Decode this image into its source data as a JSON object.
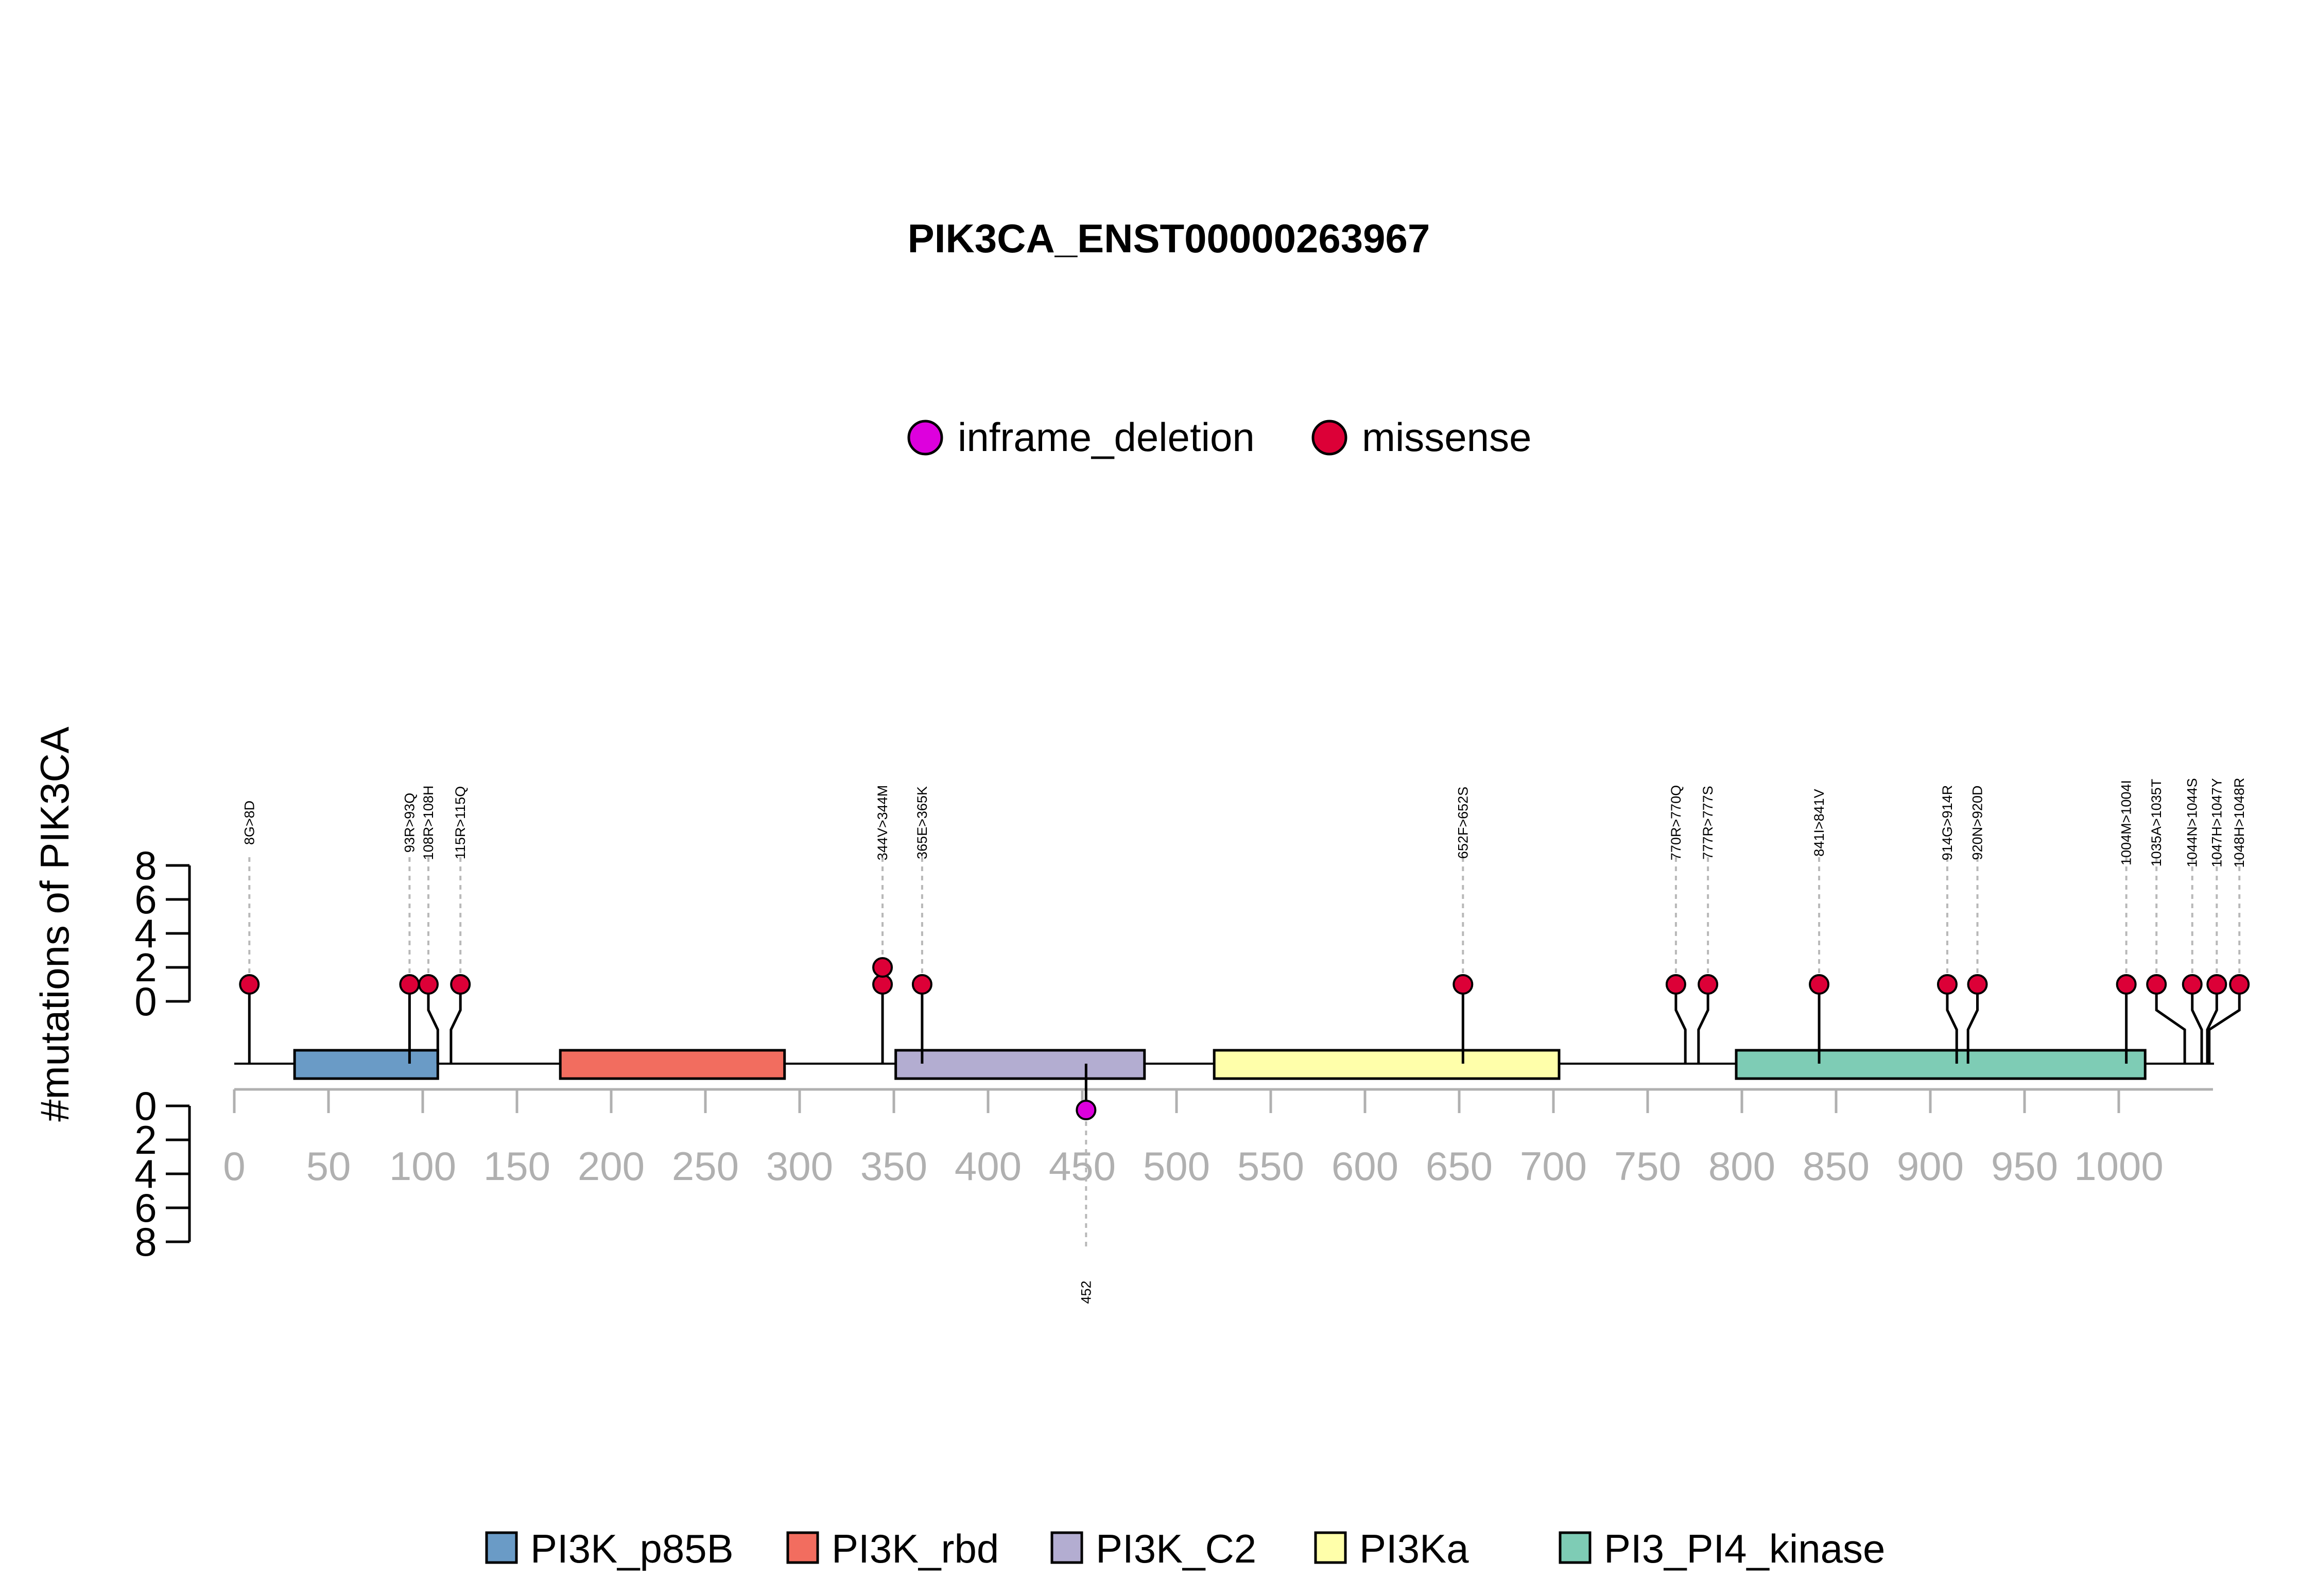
{
  "chart_data": {
    "type": "lollipop",
    "title": "PIK3CA_ENST00000263967",
    "ylabel": "#mutations of PIK3CA",
    "protein_length": 1050,
    "x_ticks": [
      0,
      50,
      100,
      150,
      200,
      250,
      300,
      350,
      400,
      450,
      500,
      550,
      600,
      650,
      700,
      750,
      800,
      850,
      900,
      950,
      1000
    ],
    "y_ticks_top": [
      "8",
      "6",
      "4",
      "2",
      "0"
    ],
    "y_ticks_bottom": [
      "0",
      "2",
      "4",
      "6",
      "8"
    ],
    "y_range": [
      0,
      8
    ],
    "mutation_legend": [
      {
        "name": "inframe_deletion",
        "color": "#DD00DD"
      },
      {
        "name": "missense",
        "color": "#DC0037"
      }
    ],
    "domain_legend": [
      {
        "name": "PI3K_p85B",
        "color": "#6A9BC6"
      },
      {
        "name": "PI3K_rbd",
        "color": "#F26D5F"
      },
      {
        "name": "PI3K_C2",
        "color": "#B3ADD1"
      },
      {
        "name": "PI3Ka",
        "color": "#FFFFAA"
      },
      {
        "name": "PI3_PI4_kinase",
        "color": "#7ECCB5"
      }
    ],
    "domains": [
      {
        "name": "PI3K_p85B",
        "start": 32,
        "end": 108
      },
      {
        "name": "PI3K_rbd",
        "start": 173,
        "end": 292
      },
      {
        "name": "PI3K_C2",
        "start": 351,
        "end": 483
      },
      {
        "name": "PI3Ka",
        "start": 520,
        "end": 703
      },
      {
        "name": "PI3_PI4_kinase",
        "start": 797,
        "end": 1014
      }
    ],
    "mutations_top": [
      {
        "label": "8G>8D",
        "pos": 8,
        "count": 1,
        "type": "missense",
        "label_pos": 8
      },
      {
        "label": "93R>93Q",
        "pos": 93,
        "count": 1,
        "type": "missense",
        "label_pos": 93
      },
      {
        "label": "108R>108H",
        "pos": 108,
        "count": 1,
        "type": "missense",
        "label_pos": 103
      },
      {
        "label": "115R>115Q",
        "pos": 115,
        "count": 1,
        "type": "missense",
        "label_pos": 120
      },
      {
        "label": "344V>344M",
        "pos": 344,
        "count": 2,
        "type": "missense",
        "label_pos": 344
      },
      {
        "label": "365E>365K",
        "pos": 365,
        "count": 1,
        "type": "missense",
        "label_pos": 365
      },
      {
        "label": "652F>652S",
        "pos": 652,
        "count": 1,
        "type": "missense",
        "label_pos": 652
      },
      {
        "label": "770R>770Q",
        "pos": 770,
        "count": 1,
        "type": "missense",
        "label_pos": 765
      },
      {
        "label": "777R>777S",
        "pos": 777,
        "count": 1,
        "type": "missense",
        "label_pos": 782
      },
      {
        "label": "841I>841V",
        "pos": 841,
        "count": 1,
        "type": "missense",
        "label_pos": 841
      },
      {
        "label": "914G>914R",
        "pos": 914,
        "count": 1,
        "type": "missense",
        "label_pos": 909
      },
      {
        "label": "920N>920D",
        "pos": 920,
        "count": 1,
        "type": "missense",
        "label_pos": 925
      },
      {
        "label": "1004M>1004I",
        "pos": 1004,
        "count": 1,
        "type": "missense",
        "label_pos": 1004
      },
      {
        "label": "1035A>1035T",
        "pos": 1035,
        "count": 1,
        "type": "missense",
        "label_pos": 1020
      },
      {
        "label": "1044N>1044S",
        "pos": 1044,
        "count": 1,
        "type": "missense",
        "label_pos": 1039
      },
      {
        "label": "1047H>1047Y",
        "pos": 1047,
        "count": 1,
        "type": "missense",
        "label_pos": 1052
      },
      {
        "label": "1048H>1048R",
        "pos": 1048,
        "count": 1,
        "type": "missense",
        "label_pos": 1064
      }
    ],
    "mutations_bottom": [
      {
        "label": "452",
        "pos": 452,
        "count": 1,
        "type": "inframe_deletion",
        "label_pos": 452
      }
    ]
  }
}
